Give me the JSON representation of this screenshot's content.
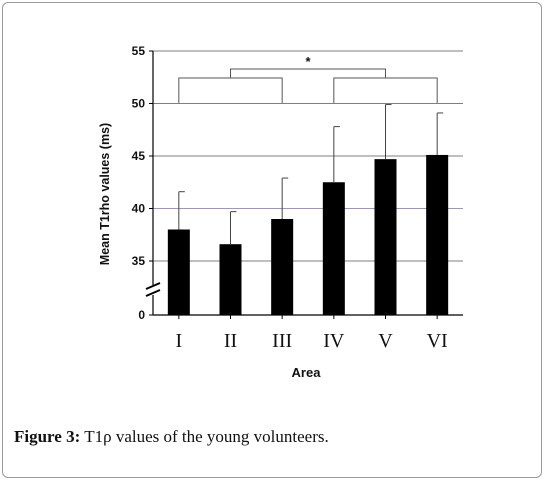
{
  "caption": {
    "label": "Figure 3:",
    "text": " T1ρ values of the young volunteers."
  },
  "chart_data": {
    "type": "bar",
    "title": "",
    "xlabel": "Area",
    "ylabel": "Mean T1rho values  (ms)",
    "categories": [
      "I",
      "II",
      "III",
      "IV",
      "V",
      "VI"
    ],
    "series": [
      {
        "values": [
          38.0,
          36.6,
          39.0,
          42.5,
          44.7,
          45.1
        ],
        "error_upper": [
          41.6,
          39.7,
          42.9,
          47.8,
          49.9,
          49.1
        ]
      }
    ],
    "ylim": [
      30,
      55
    ],
    "axis_break": [
      0,
      30
    ],
    "yticks": [
      0,
      35,
      40,
      45,
      50,
      55
    ],
    "grid": true,
    "bar_color": "#000000",
    "gridline_color": "#7f7f7f",
    "highlight_gridline": {
      "value": 40,
      "color": "#a690c8"
    },
    "significance": {
      "label": "*",
      "left_group": [
        "I",
        "III"
      ],
      "right_group": [
        "IV",
        "VI"
      ]
    }
  }
}
